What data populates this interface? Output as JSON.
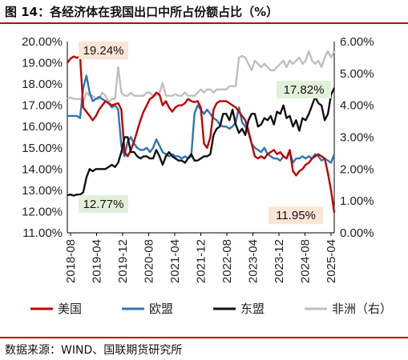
{
  "title": "图 14：各经济体在我国出口中所占份额占比（%）",
  "source": "数据来源：WIND、国联期货研究所",
  "chart_data": {
    "type": "line",
    "title": "图 14：各经济体在我国出口中所占份额占比（%）",
    "xlabel": "",
    "ylabel": "",
    "x_tick_labels": [
      "2018-08",
      "2019-04",
      "2019-12",
      "2020-08",
      "2021-04",
      "2021-12",
      "2022-08",
      "2023-04",
      "2023-12",
      "2024-08",
      "2025-04"
    ],
    "y_left_ticks": [
      "20.00%",
      "19.00%",
      "18.00%",
      "17.00%",
      "16.00%",
      "15.00%",
      "14.00%",
      "13.00%",
      "12.00%",
      "11.00%"
    ],
    "y_right_ticks": [
      "6.00%",
      "5.00%",
      "4.00%",
      "3.00%",
      "2.00%",
      "1.00%",
      "0.00%"
    ],
    "ylim_left": [
      11,
      20
    ],
    "ylim_right": [
      0,
      6
    ],
    "grid": false,
    "legend_position": "bottom",
    "x_start_month": "2018-08",
    "series": [
      {
        "name": "美国",
        "axis": "left",
        "color": "#c00000",
        "values": [
          19.0,
          19.2,
          19.3,
          19.24,
          19.3,
          16.9,
          16.7,
          16.5,
          16.3,
          16.5,
          16.8,
          17.0,
          17.2,
          17.1,
          17.0,
          17.05,
          17.1,
          16.8,
          14.8,
          14.6,
          14.9,
          15.3,
          15.8,
          16.3,
          16.7,
          17.0,
          17.3,
          17.4,
          17.6,
          17.5,
          17.0,
          17.2,
          16.9,
          16.7,
          16.9,
          17.0,
          17.0,
          17.1,
          17.3,
          17.2,
          17.15,
          17.2,
          16.9,
          15.2,
          15.0,
          15.5,
          16.8,
          17.1,
          17.2,
          17.2,
          17.2,
          17.1,
          17.0,
          16.9,
          16.7,
          16.5,
          16.3,
          15.8,
          15.2,
          14.6,
          14.5,
          14.6,
          14.5,
          14.7,
          14.8,
          14.9,
          14.7,
          14.8,
          14.6,
          14.5,
          14.9,
          13.9,
          13.7,
          13.9,
          14.0,
          14.2,
          14.3,
          14.5,
          14.6,
          14.7,
          14.6,
          14.5,
          13.8,
          13.0,
          11.95
        ]
      },
      {
        "name": "欧盟",
        "axis": "left",
        "color": "#2e75b6",
        "values": [
          16.5,
          16.5,
          16.5,
          16.5,
          16.4,
          17.8,
          18.4,
          17.6,
          17.2,
          17.3,
          17.4,
          17.3,
          17.2,
          17.1,
          16.9,
          17.0,
          16.8,
          15.1,
          14.6,
          15.3,
          15.5,
          15.2,
          15.0,
          14.9,
          14.9,
          15.0,
          14.8,
          15.0,
          15.4,
          15.1,
          14.8,
          14.7,
          14.6,
          14.7,
          14.6,
          14.6,
          14.5,
          14.6,
          14.5,
          14.6,
          16.6,
          17.0,
          16.8,
          16.6,
          16.8,
          16.6,
          16.4,
          16.3,
          16.1,
          16.0,
          16.0,
          15.9,
          16.0,
          16.2,
          16.9,
          16.2,
          16.0,
          15.7,
          15.2,
          15.0,
          14.9,
          14.8,
          15.0,
          14.7,
          14.6,
          14.5,
          14.5,
          14.4,
          14.6,
          14.5,
          14.8,
          14.3,
          14.5,
          14.5,
          14.6,
          14.5,
          14.6,
          14.5,
          14.7,
          14.6,
          14.4,
          14.5,
          14.4,
          14.3,
          14.7
        ]
      },
      {
        "name": "东盟",
        "axis": "left",
        "color": "#111111",
        "values": [
          12.77,
          12.8,
          12.75,
          12.8,
          12.8,
          12.9,
          13.6,
          14.0,
          13.9,
          14.0,
          14.0,
          14.0,
          14.0,
          14.1,
          14.2,
          14.1,
          14.3,
          14.8,
          15.5,
          15.5,
          14.8,
          14.8,
          14.6,
          14.5,
          14.6,
          14.6,
          14.5,
          14.5,
          14.9,
          14.6,
          14.2,
          14.6,
          14.8,
          14.6,
          14.5,
          14.4,
          14.4,
          14.3,
          14.5,
          14.7,
          14.4,
          14.4,
          14.5,
          14.6,
          14.6,
          14.7,
          15.6,
          15.9,
          16.0,
          16.6,
          16.6,
          16.3,
          16.8,
          16.1,
          15.7,
          15.9,
          15.6,
          16.3,
          16.6,
          16.6,
          16.0,
          16.1,
          16.4,
          16.3,
          16.5,
          16.1,
          16.7,
          16.6,
          17.0,
          16.4,
          16.5,
          16.0,
          16.3,
          15.8,
          16.4,
          16.3,
          16.6,
          17.0,
          17.4,
          17.1,
          17.0,
          16.3,
          16.6,
          17.5,
          17.82
        ]
      },
      {
        "name": "非洲（右）",
        "axis": "right",
        "color": "#bfbfbf",
        "values": [
          4.2,
          4.25,
          4.2,
          4.2,
          4.2,
          4.1,
          4.4,
          4.3,
          4.3,
          4.2,
          4.2,
          4.4,
          4.3,
          4.1,
          4.2,
          4.2,
          5.2,
          4.4,
          4.3,
          4.3,
          4.4,
          4.3,
          4.3,
          4.3,
          4.3,
          4.4,
          4.4,
          4.3,
          4.3,
          4.4,
          4.7,
          4.3,
          4.3,
          4.3,
          4.35,
          4.3,
          4.3,
          4.4,
          4.3,
          4.3,
          4.3,
          4.4,
          4.5,
          4.4,
          4.5,
          4.5,
          4.4,
          4.5,
          4.5,
          4.5,
          4.5,
          4.6,
          4.6,
          4.6,
          5.5,
          5.55,
          5.5,
          5.3,
          5.1,
          5.4,
          5.3,
          5.2,
          5.3,
          5.2,
          5.1,
          5.1,
          5.2,
          5.3,
          5.4,
          5.2,
          5.4,
          5.3,
          5.4,
          5.5,
          5.3,
          5.4,
          5.7,
          5.4,
          5.3,
          5.4,
          5.2,
          5.5,
          5.7,
          5.5,
          5.7
        ]
      }
    ],
    "annotations": [
      {
        "text": "19.24%",
        "series": "美国",
        "bg": "#fbe5d6"
      },
      {
        "text": "17.82%",
        "series": "东盟",
        "bg": "#e2f0d9"
      },
      {
        "text": "12.77%",
        "series": "东盟",
        "bg": "#e2f0d9"
      },
      {
        "text": "11.95%",
        "series": "美国",
        "bg": "#fbe5d6"
      }
    ]
  }
}
